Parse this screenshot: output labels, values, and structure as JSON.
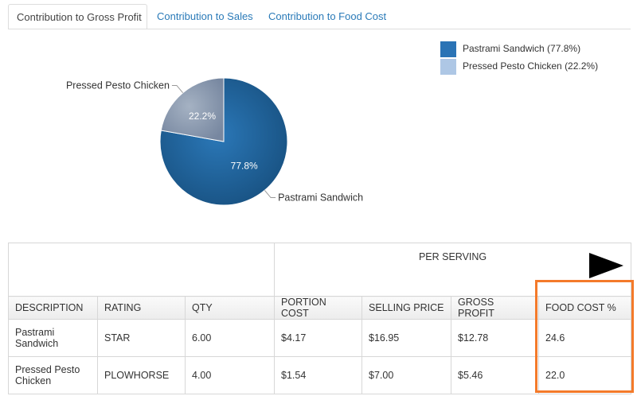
{
  "tabs": [
    {
      "label": "Contribution to Gross Profit",
      "active": true
    },
    {
      "label": "Contribution to Sales",
      "active": false
    },
    {
      "label": "Contribution to Food Cost",
      "active": false
    }
  ],
  "chart_data": {
    "type": "pie",
    "title": "",
    "slices": [
      {
        "label": "Pastrami Sandwich",
        "value": 77.8,
        "display": "77.8%",
        "color": "#1f5f94"
      },
      {
        "label": "Pressed Pesto Chicken",
        "value": 22.2,
        "display": "22.2%",
        "color": "#8c9cb1"
      }
    ],
    "legend": {
      "position": "top-right",
      "items": [
        {
          "label": "Pastrami Sandwich (77.8%)",
          "color": "#2a73b5"
        },
        {
          "label": "Pressed Pesto Chicken (22.2%)",
          "color": "#aec7e5"
        }
      ]
    }
  },
  "table": {
    "group_header": "PER SERVING",
    "columns": [
      "DESCRIPTION",
      "RATING",
      "QTY",
      "PORTION COST",
      "SELLING PRICE",
      "GROSS PROFIT",
      "FOOD COST %"
    ],
    "rows": [
      [
        "Pastrami Sandwich",
        "STAR",
        "6.00",
        "$4.17",
        "$16.95",
        "$12.78",
        "24.6"
      ],
      [
        "Pressed Pesto Chicken",
        "PLOWHORSE",
        "4.00",
        "$1.54",
        "$7.00",
        "$5.46",
        "22.0"
      ]
    ]
  },
  "colors": {
    "tab_link": "#2a7ab8",
    "highlight": "#f47a2a"
  }
}
